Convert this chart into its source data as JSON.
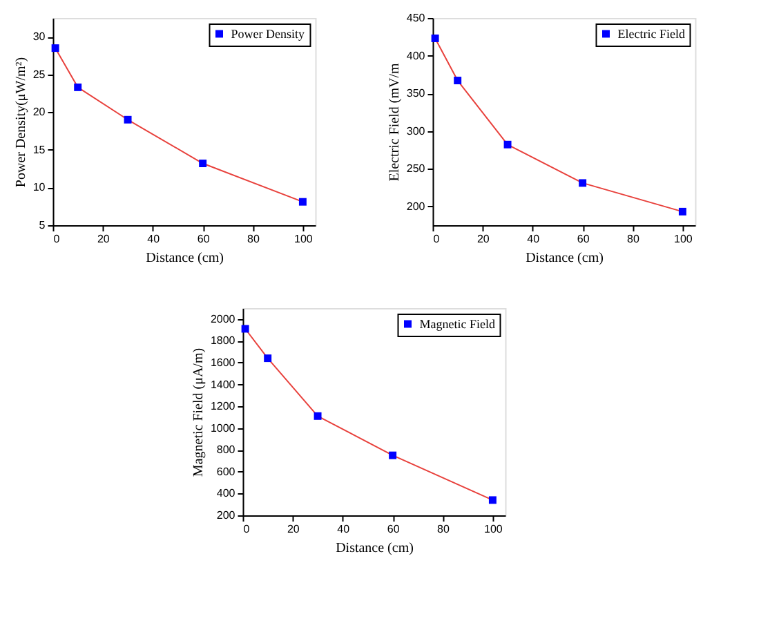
{
  "chart_data": [
    {
      "type": "line",
      "xlabel": "Distance (cm)",
      "ylabel": "Power Density(μW/m²)",
      "x": [
        1,
        10,
        30,
        60,
        100
      ],
      "xlim": [
        0,
        105
      ],
      "xticks": [
        0,
        20,
        40,
        60,
        80,
        100
      ],
      "ylim": [
        5,
        32.5
      ],
      "yticks": [
        5,
        10,
        15,
        20,
        25,
        30
      ],
      "grid": false,
      "legend": "top right",
      "marker": "square",
      "line_style": "solid",
      "series": [
        {
          "name": "Power Density",
          "color": "#0000ff",
          "values": [
            28.5,
            23.3,
            19.0,
            13.2,
            8.1
          ]
        }
      ]
    },
    {
      "type": "line",
      "xlabel": "Distance (cm)",
      "ylabel": "Electric Field (mV/m",
      "x": [
        1,
        10,
        30,
        60,
        100
      ],
      "xlim": [
        0,
        105
      ],
      "xticks": [
        0,
        20,
        40,
        60,
        80,
        100
      ],
      "ylim": [
        175,
        450
      ],
      "yticks": [
        200,
        250,
        300,
        350,
        400,
        450
      ],
      "grid": false,
      "legend": "top right",
      "marker": "square",
      "line_style": "solid",
      "series": [
        {
          "name": "Electric Field",
          "color": "#0000ff",
          "values": [
            423,
            367,
            282,
            231,
            193
          ]
        }
      ]
    },
    {
      "type": "line",
      "xlabel": "Distance (cm)",
      "ylabel": "Magnetic Field (μA/m)",
      "x": [
        1,
        10,
        30,
        60,
        100
      ],
      "xlim": [
        0,
        105
      ],
      "xticks": [
        0,
        20,
        40,
        60,
        80,
        100
      ],
      "ylim": [
        200,
        2100
      ],
      "yticks": [
        200,
        400,
        600,
        800,
        1000,
        1200,
        1400,
        1600,
        1800,
        2000
      ],
      "grid": false,
      "legend": "top right",
      "marker": "square",
      "line_style": "solid",
      "series": [
        {
          "name": "Magnetic Field",
          "color": "#0000ff",
          "values": [
            1910,
            1640,
            1110,
            750,
            340
          ]
        }
      ]
    }
  ]
}
